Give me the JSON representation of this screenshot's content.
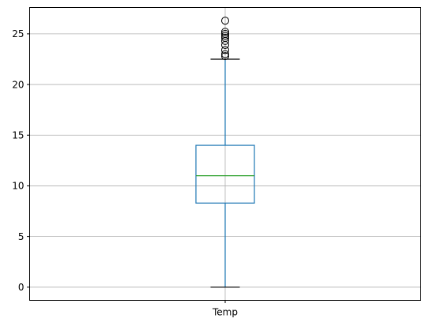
{
  "chart_data": {
    "type": "box",
    "title": "",
    "xlabel": "",
    "ylabel": "",
    "categories": [
      "Temp"
    ],
    "ylim": [
      -1.3,
      27.6
    ],
    "yticks": [
      0,
      5,
      10,
      15,
      20,
      25
    ],
    "grid": true,
    "legend": "none",
    "boxes": [
      {
        "name": "Temp",
        "whisker_low": 0,
        "q1": 8.3,
        "median": 11.0,
        "q3": 14.0,
        "whisker_high": 22.5,
        "outliers": [
          22.8,
          23.0,
          23.4,
          23.9,
          24.3,
          24.6,
          24.8,
          25.0,
          25.2,
          26.3
        ]
      }
    ],
    "colors": {
      "box": "#1f77b4",
      "median": "#2ca02c",
      "caps": "#000000",
      "outlier": "#000000",
      "grid": "#b0b0b0"
    }
  }
}
